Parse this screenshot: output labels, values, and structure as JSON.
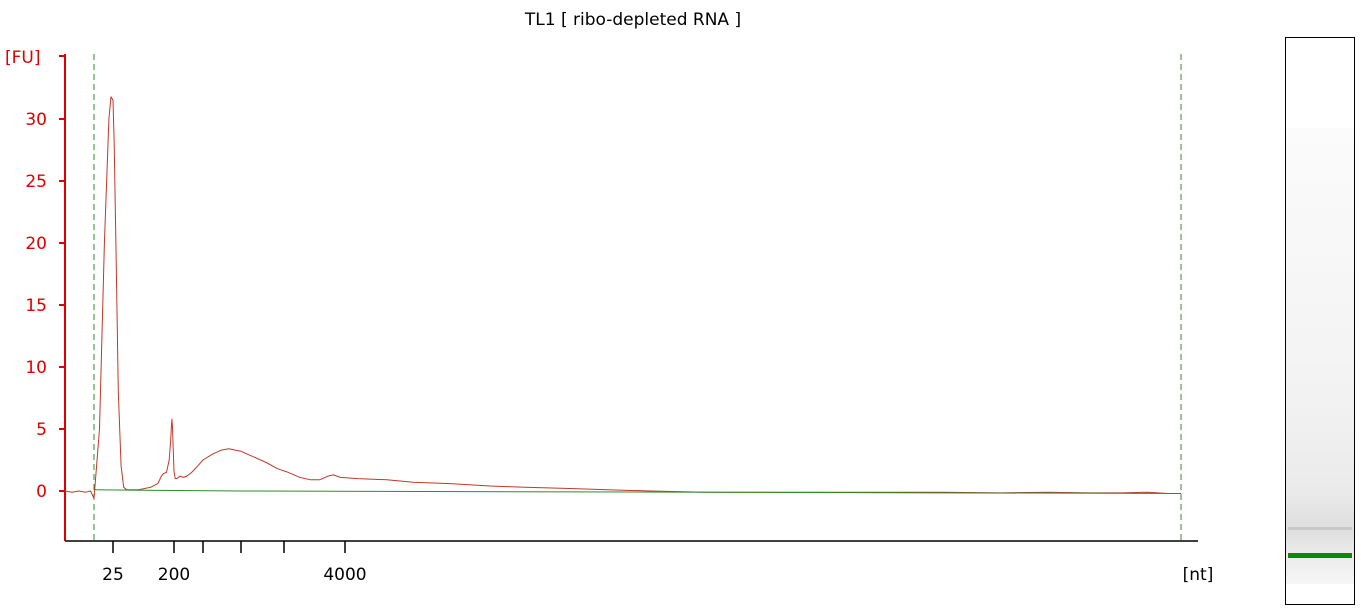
{
  "chart_data": {
    "type": "line",
    "title": "TL1  [ ribo-depleted RNA ]",
    "ylabel": "[FU]",
    "xlabel": "[nt]",
    "ylim": [
      -4,
      35
    ],
    "y_ticks": [
      0,
      5,
      10,
      15,
      20,
      25,
      30
    ],
    "y_tick_labels": [
      "0",
      "5",
      "10",
      "15",
      "20",
      "25",
      "30"
    ],
    "x_ticks": [
      {
        "label": "25",
        "x": 25
      },
      {
        "label": "200",
        "x": 200
      },
      {
        "label": "",
        "x": 500
      },
      {
        "label": "",
        "x": 1000
      },
      {
        "label": "",
        "x": 2000
      },
      {
        "label": "4000",
        "x": 4000
      }
    ],
    "series": [
      {
        "color": "#c0392b",
        "points": [
          [
            -25,
            0.0
          ],
          [
            -15,
            -0.1
          ],
          [
            -5,
            0.0
          ],
          [
            5,
            -0.1
          ],
          [
            12,
            0.0
          ],
          [
            17,
            -0.6
          ],
          [
            19,
            5
          ],
          [
            21,
            20
          ],
          [
            23,
            30
          ],
          [
            24,
            31.8
          ],
          [
            25,
            31.5
          ],
          [
            26,
            28
          ],
          [
            28,
            18
          ],
          [
            30,
            8
          ],
          [
            33,
            2
          ],
          [
            36,
            0.3
          ],
          [
            40,
            0.1
          ],
          [
            60,
            0.1
          ],
          [
            90,
            0.3
          ],
          [
            115,
            0.6
          ],
          [
            130,
            1.2
          ],
          [
            140,
            1.4
          ],
          [
            155,
            1.5
          ],
          [
            170,
            2.5
          ],
          [
            178,
            4
          ],
          [
            183,
            5.2
          ],
          [
            186,
            5.8
          ],
          [
            190,
            5.1
          ],
          [
            195,
            3.2
          ],
          [
            200,
            1.6
          ],
          [
            208,
            1.0
          ],
          [
            220,
            1.0
          ],
          [
            240,
            1.2
          ],
          [
            270,
            1.1
          ],
          [
            300,
            1.2
          ],
          [
            350,
            1.5
          ],
          [
            420,
            2.0
          ],
          [
            500,
            2.5
          ],
          [
            600,
            3.0
          ],
          [
            700,
            3.3
          ],
          [
            800,
            3.4
          ],
          [
            900,
            3.3
          ],
          [
            1000,
            3.2
          ],
          [
            1200,
            2.8
          ],
          [
            1500,
            2.3
          ],
          [
            1800,
            1.8
          ],
          [
            2100,
            1.5
          ],
          [
            2400,
            1.1
          ],
          [
            2700,
            0.9
          ],
          [
            3000,
            0.9
          ],
          [
            3300,
            1.2
          ],
          [
            3500,
            1.3
          ],
          [
            3800,
            1.1
          ],
          [
            4200,
            1.0
          ],
          [
            4700,
            0.9
          ],
          [
            5200,
            0.7
          ],
          [
            6000,
            0.6
          ],
          [
            7000,
            0.4
          ],
          [
            8000,
            0.3
          ],
          [
            9500,
            0.2
          ],
          [
            11000,
            0.1
          ],
          [
            13000,
            0.0
          ],
          [
            16000,
            -0.1
          ],
          [
            20000,
            -0.1
          ],
          [
            25000,
            -0.1
          ],
          [
            30000,
            -0.1
          ],
          [
            40000,
            -0.1
          ],
          [
            50000,
            -0.15
          ],
          [
            60000,
            -0.1
          ],
          [
            70000,
            -0.15
          ],
          [
            80000,
            -0.15
          ],
          [
            88000,
            -0.1
          ],
          [
            95000,
            -0.2
          ],
          [
            100000,
            -0.2
          ]
        ]
      },
      {
        "color": "#2e8b2e",
        "points": [
          [
            17,
            0.1
          ],
          [
            1000,
            0.0
          ],
          [
            100000,
            -0.2
          ]
        ]
      }
    ],
    "ladder_lines_x": [
      17,
      100000
    ]
  },
  "gel": {
    "marker_color": "#0a8a0a"
  }
}
